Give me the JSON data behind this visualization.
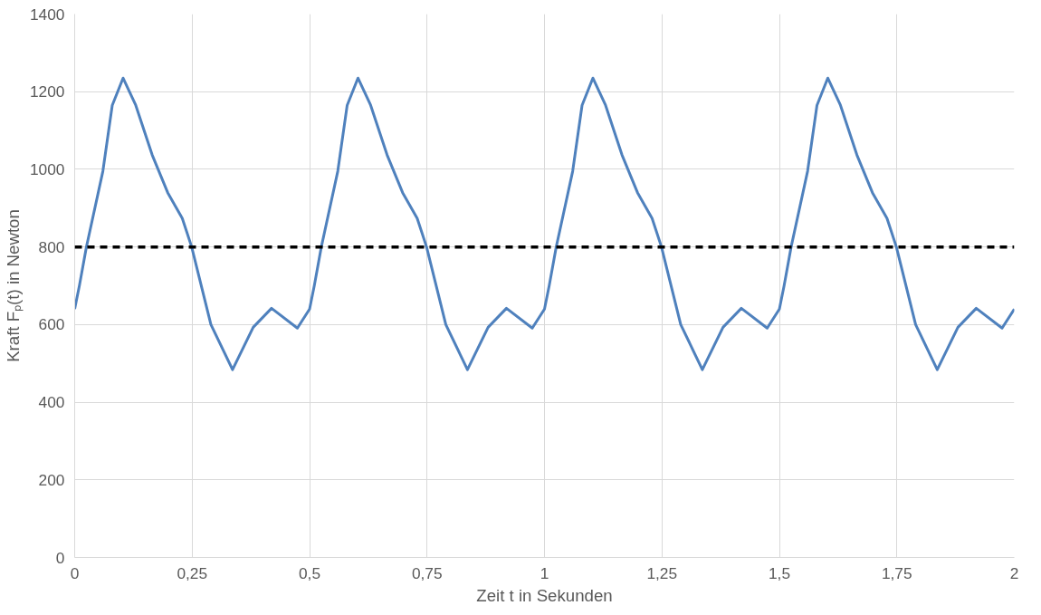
{
  "chart_data": {
    "type": "line",
    "xlabel": "Zeit t in Sekunden",
    "ylabel": "Kraft Fₚ(t) in Newton",
    "series": [
      {
        "color": "#4f81bd",
        "x": [
          0,
          0.01,
          0.025,
          0.06,
          0.08,
          0.103,
          0.13,
          0.165,
          0.198,
          0.229,
          0.249,
          0.29,
          0.336,
          0.38,
          0.419,
          0.474,
          0.5,
          0.51,
          0.525,
          0.56,
          0.58,
          0.603,
          0.63,
          0.665,
          0.698,
          0.729,
          0.749,
          0.79,
          0.836,
          0.88,
          0.919,
          0.974,
          1,
          1.01,
          1.025,
          1.06,
          1.08,
          1.103,
          1.13,
          1.165,
          1.198,
          1.229,
          1.249,
          1.29,
          1.336,
          1.38,
          1.419,
          1.474,
          1.5,
          1.51,
          1.525,
          1.56,
          1.58,
          1.603,
          1.63,
          1.665,
          1.698,
          1.729,
          1.749,
          1.79,
          1.836,
          1.88,
          1.919,
          1.974,
          2
        ],
        "values": [
          640,
          700,
          800,
          995,
          1165,
          1235,
          1165,
          1037,
          940,
          874,
          800,
          600,
          484,
          593,
          642,
          591,
          640,
          700,
          800,
          995,
          1165,
          1235,
          1165,
          1037,
          940,
          874,
          800,
          600,
          484,
          593,
          642,
          591,
          640,
          700,
          800,
          995,
          1165,
          1235,
          1165,
          1037,
          940,
          874,
          800,
          600,
          484,
          593,
          642,
          591,
          640,
          700,
          800,
          995,
          1165,
          1235,
          1165,
          1037,
          940,
          874,
          800,
          600,
          484,
          593,
          642,
          591,
          640
        ]
      }
    ],
    "ref_lines": [
      {
        "axis": "y",
        "value": 800,
        "color": "#000000",
        "line_style": "dashed"
      }
    ],
    "xlim": [
      0,
      2
    ],
    "ylim": [
      0,
      1400
    ],
    "xticks": [
      0,
      {
        "value": 0.25,
        "label": "0,25"
      },
      {
        "value": 0.5,
        "label": "0,5"
      },
      {
        "value": 0.75,
        "label": "0,75"
      },
      1,
      {
        "value": 1.25,
        "label": "1,25"
      },
      {
        "value": 1.5,
        "label": "1,5"
      },
      {
        "value": 1.75,
        "label": "1,75"
      },
      2
    ],
    "yticks": [
      0,
      200,
      400,
      600,
      800,
      1000,
      1200,
      1400
    ],
    "grid": true,
    "marker": "none",
    "line_style": "solid"
  }
}
